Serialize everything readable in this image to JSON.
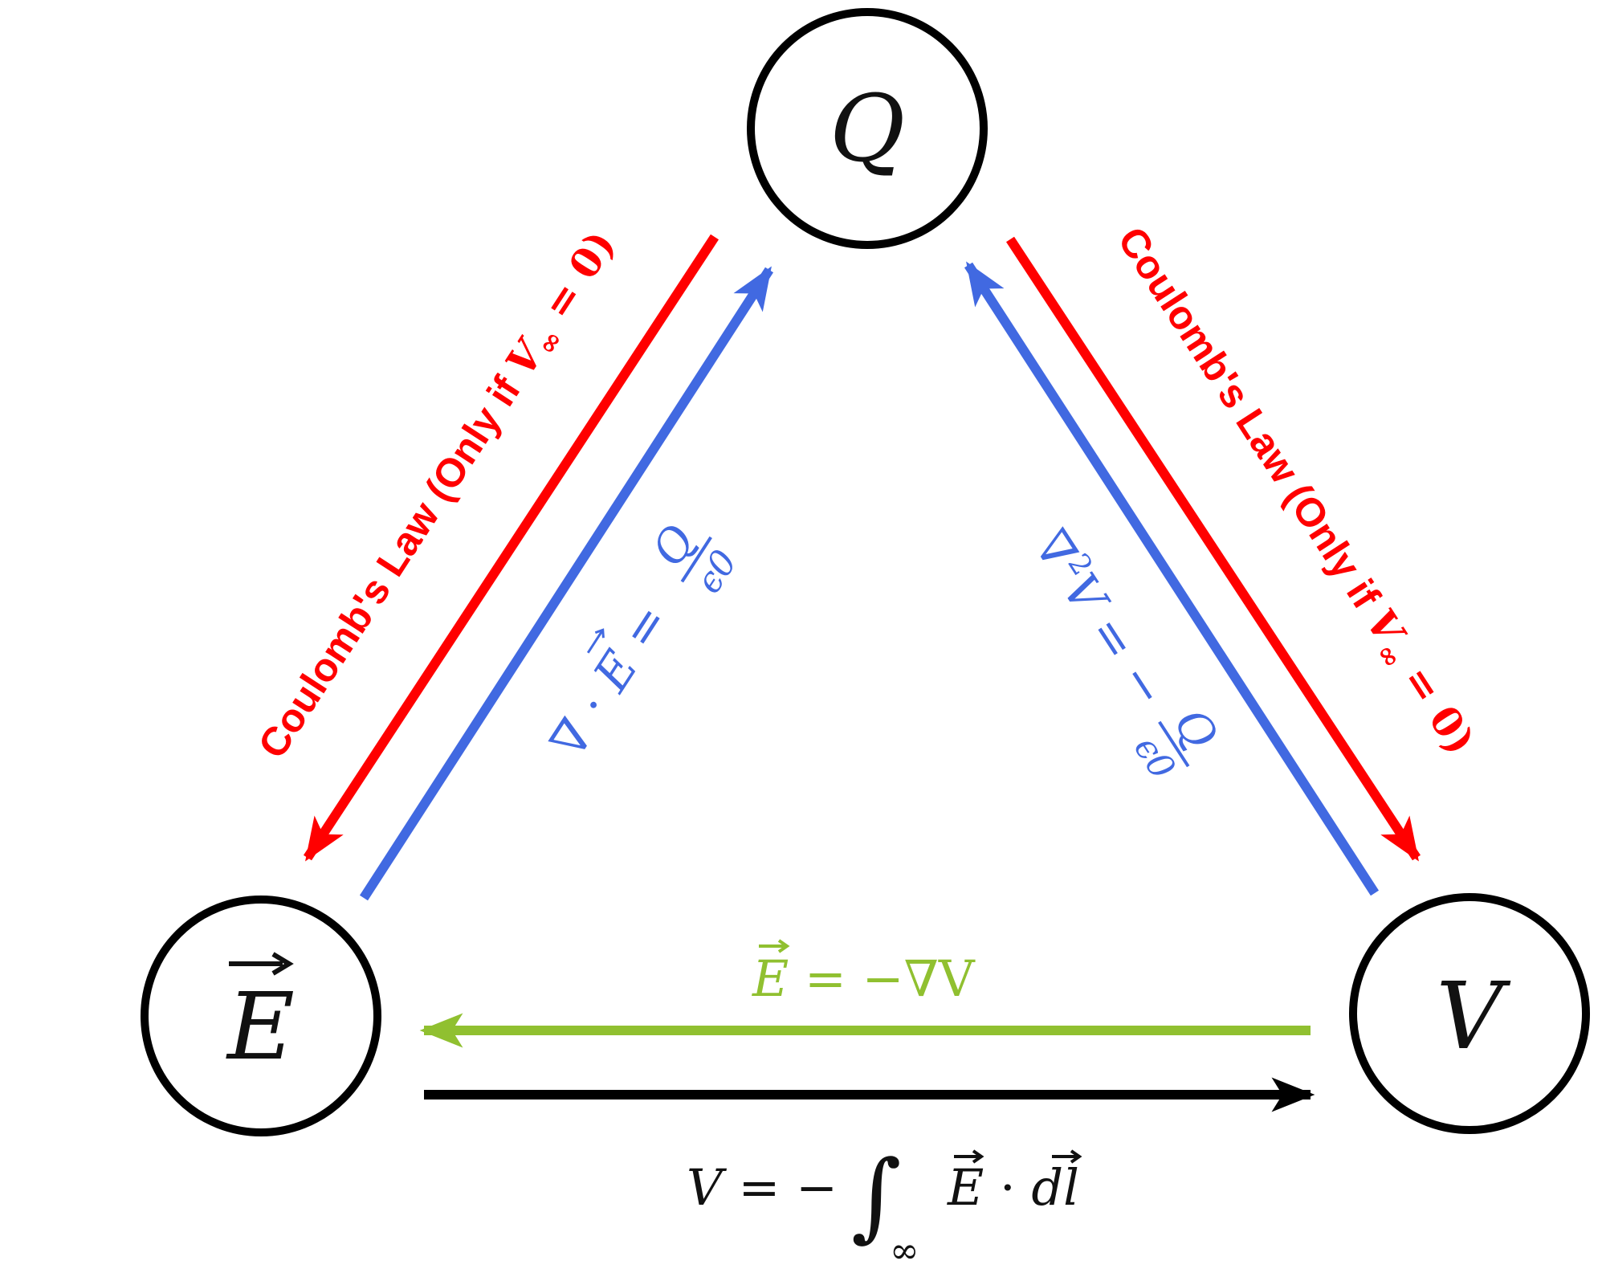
{
  "nodes": {
    "q": {
      "label": "Q"
    },
    "e": {
      "label": "E"
    },
    "v": {
      "label": "V"
    }
  },
  "labels": {
    "coulomb_left": "Coulomb's Law (Only if ",
    "coulomb_right": "Coulomb's Law (Only if ",
    "coulomb_v": "V",
    "coulomb_inf": "∞",
    "coulomb_tail": " = 0)",
    "gauss_lhs": "∇ · ",
    "gauss_e": "E",
    "gauss_eq": " = ",
    "gauss_num": "Q",
    "gauss_den": "ϵ0",
    "poisson_lhs": "∇",
    "poisson_sup": "2",
    "poisson_v": "V",
    "poisson_eq": " = −",
    "poisson_num": "Q",
    "poisson_den": "ϵ0",
    "gradient_e": "E",
    "gradient_rest": " = −∇V",
    "integral_lhs": "V = −",
    "integral_sign": "∫",
    "integral_sub": "∞",
    "integral_e": "E",
    "integral_dot": " · ",
    "integral_dl": "dl"
  },
  "colors": {
    "coulomb": "#ff0000",
    "gauss": "#4169e1",
    "gradient": "#90c030",
    "integral": "#000000",
    "node_stroke": "#000000"
  }
}
